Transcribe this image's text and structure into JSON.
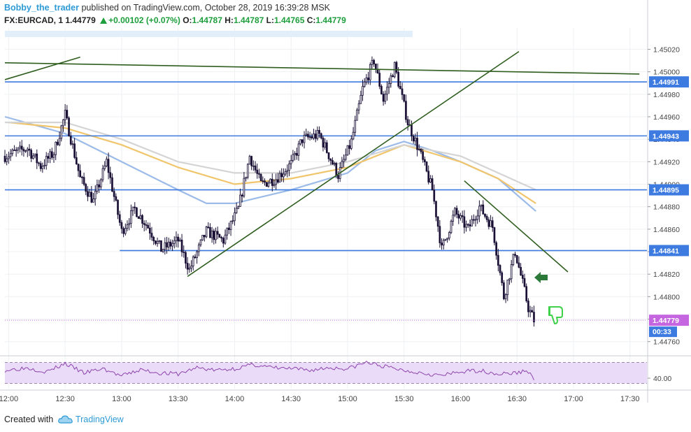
{
  "header": {
    "author": "Bobby_the_trader",
    "published_text": "published on TradingView.com, October 28, 2019 16:39:28 MSK",
    "symbol": "FX:EURCAD, 1",
    "last": "1.44779",
    "change": "+0.00102 (+0.07%)",
    "o_label": "O:",
    "o": "1.44787",
    "h_label": "H:",
    "h": "1.44787",
    "l_label": "L:",
    "l": "1.44765",
    "c_label": "C:",
    "c": "1.44779"
  },
  "footer": {
    "created_with": "Created with",
    "brand": "TradingView"
  },
  "colors": {
    "candle_up": "#ffffff",
    "candle_down": "#1a1036",
    "candle_border": "#1a1036",
    "hline": "#3d7be0",
    "trend": "#2f5e1f",
    "ma_blue": "#9cbbe8",
    "ma_orange": "#f0c56c",
    "ma_grey": "#d4d4d4",
    "rsi": "#8e44ad",
    "rsi_band": "#eadcf8",
    "price_tag": "#c566e0",
    "countdown_tag": "#3d7be0",
    "arrow": "#2c7a3a",
    "thumb": "#3fd14a"
  },
  "icons": {
    "arrow": "left-arrow-icon",
    "thumb": "thumbs-down-icon",
    "logo": "tradingview-cloud-logo"
  },
  "chart_data": {
    "type": "candlestick",
    "title": "",
    "interval": "1",
    "ylim": [
      1.44748,
      1.45034
    ],
    "y_ticks": [
      "1.45020",
      "1.45000",
      "1.44980",
      "1.44960",
      "1.44940",
      "1.44920",
      "1.44900",
      "1.44880",
      "1.44860",
      "1.44840",
      "1.44820",
      "1.44800",
      "1.44780",
      "1.44760"
    ],
    "x_ticks": [
      "12:00",
      "12:30",
      "13:00",
      "13:30",
      "14:00",
      "14:30",
      "15:00",
      "15:30",
      "16:00",
      "16:30",
      "17:00",
      "17:30"
    ],
    "x_start": "11:58",
    "x_end": "17:39",
    "horizontal_levels": [
      {
        "value": 1.44991,
        "label": "1.44991",
        "from": "11:58"
      },
      {
        "value": 1.44943,
        "label": "1.44943",
        "from": "11:58"
      },
      {
        "value": 1.44895,
        "label": "1.44895",
        "from": "11:58"
      },
      {
        "value": 1.44841,
        "label": "1.44841",
        "from": "12:59"
      }
    ],
    "current_price": {
      "value": 1.44779,
      "label": "1.44779",
      "countdown": "00:33"
    },
    "trendlines": [
      {
        "x1": "11:58",
        "y1": 1.44993,
        "x2": "12:38",
        "y2": 1.45013
      },
      {
        "x1": "11:58",
        "y1": 1.45008,
        "x2": "17:35",
        "y2": 1.44998
      },
      {
        "x1": "13:35",
        "y1": 1.44818,
        "x2": "16:31",
        "y2": 1.45018
      },
      {
        "x1": "16:02",
        "y1": 1.44903,
        "x2": "16:57",
        "y2": 1.44822
      }
    ],
    "anchors": [
      [
        "11:58",
        1.44925
      ],
      [
        "12:10",
        1.44932
      ],
      [
        "12:17",
        1.44916
      ],
      [
        "12:24",
        1.44928
      ],
      [
        "12:30",
        1.44962
      ],
      [
        "12:38",
        1.44905
      ],
      [
        "12:45",
        1.44885
      ],
      [
        "12:52",
        1.4492
      ],
      [
        "13:00",
        1.44858
      ],
      [
        "13:07",
        1.44878
      ],
      [
        "13:14",
        1.44862
      ],
      [
        "13:21",
        1.44842
      ],
      [
        "13:30",
        1.4485
      ],
      [
        "13:36",
        1.44824
      ],
      [
        "13:45",
        1.44858
      ],
      [
        "13:54",
        1.4485
      ],
      [
        "14:02",
        1.44878
      ],
      [
        "14:08",
        1.44925
      ],
      [
        "14:14",
        1.449
      ],
      [
        "14:22",
        1.44905
      ],
      [
        "14:30",
        1.44918
      ],
      [
        "14:36",
        1.4494
      ],
      [
        "14:45",
        1.44944
      ],
      [
        "14:55",
        1.44908
      ],
      [
        "15:02",
        1.44938
      ],
      [
        "15:08",
        1.44985
      ],
      [
        "15:14",
        1.4501
      ],
      [
        "15:19",
        1.44975
      ],
      [
        "15:25",
        1.45005
      ],
      [
        "15:32",
        1.44955
      ],
      [
        "15:38",
        1.4493
      ],
      [
        "15:45",
        1.44895
      ],
      [
        "15:50",
        1.44842
      ],
      [
        "15:57",
        1.44875
      ],
      [
        "16:04",
        1.4486
      ],
      [
        "16:10",
        1.4488
      ],
      [
        "16:17",
        1.44862
      ],
      [
        "16:23",
        1.448
      ],
      [
        "16:29",
        1.4484
      ],
      [
        "16:33",
        1.44812
      ],
      [
        "16:36",
        1.4479
      ],
      [
        "16:39",
        1.44779
      ]
    ],
    "moving_averages": [
      {
        "color": "#9cbbe8",
        "points": [
          [
            "11:58",
            1.4496
          ],
          [
            "12:30",
            1.44945
          ],
          [
            "13:00",
            1.4492
          ],
          [
            "13:30",
            1.44895
          ],
          [
            "13:45",
            1.44883
          ],
          [
            "14:00",
            1.44883
          ],
          [
            "14:30",
            1.44895
          ],
          [
            "15:00",
            1.4491
          ],
          [
            "15:15",
            1.4493
          ],
          [
            "15:30",
            1.44938
          ],
          [
            "15:45",
            1.4493
          ],
          [
            "16:00",
            1.4492
          ],
          [
            "16:20",
            1.44905
          ],
          [
            "16:40",
            1.44876
          ]
        ]
      },
      {
        "color": "#f0c56c",
        "points": [
          [
            "12:00",
            1.44955
          ],
          [
            "12:30",
            1.4495
          ],
          [
            "13:00",
            1.44935
          ],
          [
            "13:30",
            1.44915
          ],
          [
            "14:00",
            1.449
          ],
          [
            "14:30",
            1.44905
          ],
          [
            "15:00",
            1.44915
          ],
          [
            "15:30",
            1.44935
          ],
          [
            "16:00",
            1.4492
          ],
          [
            "16:20",
            1.44905
          ],
          [
            "16:40",
            1.44883
          ]
        ]
      },
      {
        "color": "#d4d4d4",
        "points": [
          [
            "11:58",
            1.44955
          ],
          [
            "12:30",
            1.44955
          ],
          [
            "13:00",
            1.4494
          ],
          [
            "13:30",
            1.4492
          ],
          [
            "14:00",
            1.4491
          ],
          [
            "14:30",
            1.4491
          ],
          [
            "15:00",
            1.4492
          ],
          [
            "15:30",
            1.44935
          ],
          [
            "16:00",
            1.44925
          ],
          [
            "16:20",
            1.4491
          ],
          [
            "16:40",
            1.44895
          ]
        ]
      }
    ],
    "rsi": {
      "level_label": "40.00",
      "upper": 70,
      "lower": 30,
      "value_range": [
        20,
        80
      ],
      "points": [
        [
          "11:58",
          55
        ],
        [
          "12:10",
          60
        ],
        [
          "12:20",
          52
        ],
        [
          "12:30",
          68
        ],
        [
          "12:40",
          50
        ],
        [
          "12:50",
          58
        ],
        [
          "13:00",
          44
        ],
        [
          "13:10",
          56
        ],
        [
          "13:20",
          50
        ],
        [
          "13:30",
          48
        ],
        [
          "13:40",
          60
        ],
        [
          "13:50",
          55
        ],
        [
          "14:00",
          58
        ],
        [
          "14:10",
          66
        ],
        [
          "14:20",
          60
        ],
        [
          "14:30",
          58
        ],
        [
          "14:40",
          55
        ],
        [
          "14:50",
          60
        ],
        [
          "15:00",
          58
        ],
        [
          "15:10",
          70
        ],
        [
          "15:20",
          62
        ],
        [
          "15:30",
          55
        ],
        [
          "15:40",
          50
        ],
        [
          "15:50",
          45
        ],
        [
          "16:00",
          52
        ],
        [
          "16:10",
          55
        ],
        [
          "16:20",
          48
        ],
        [
          "16:30",
          50
        ],
        [
          "16:35",
          55
        ],
        [
          "16:39",
          40
        ]
      ]
    }
  }
}
